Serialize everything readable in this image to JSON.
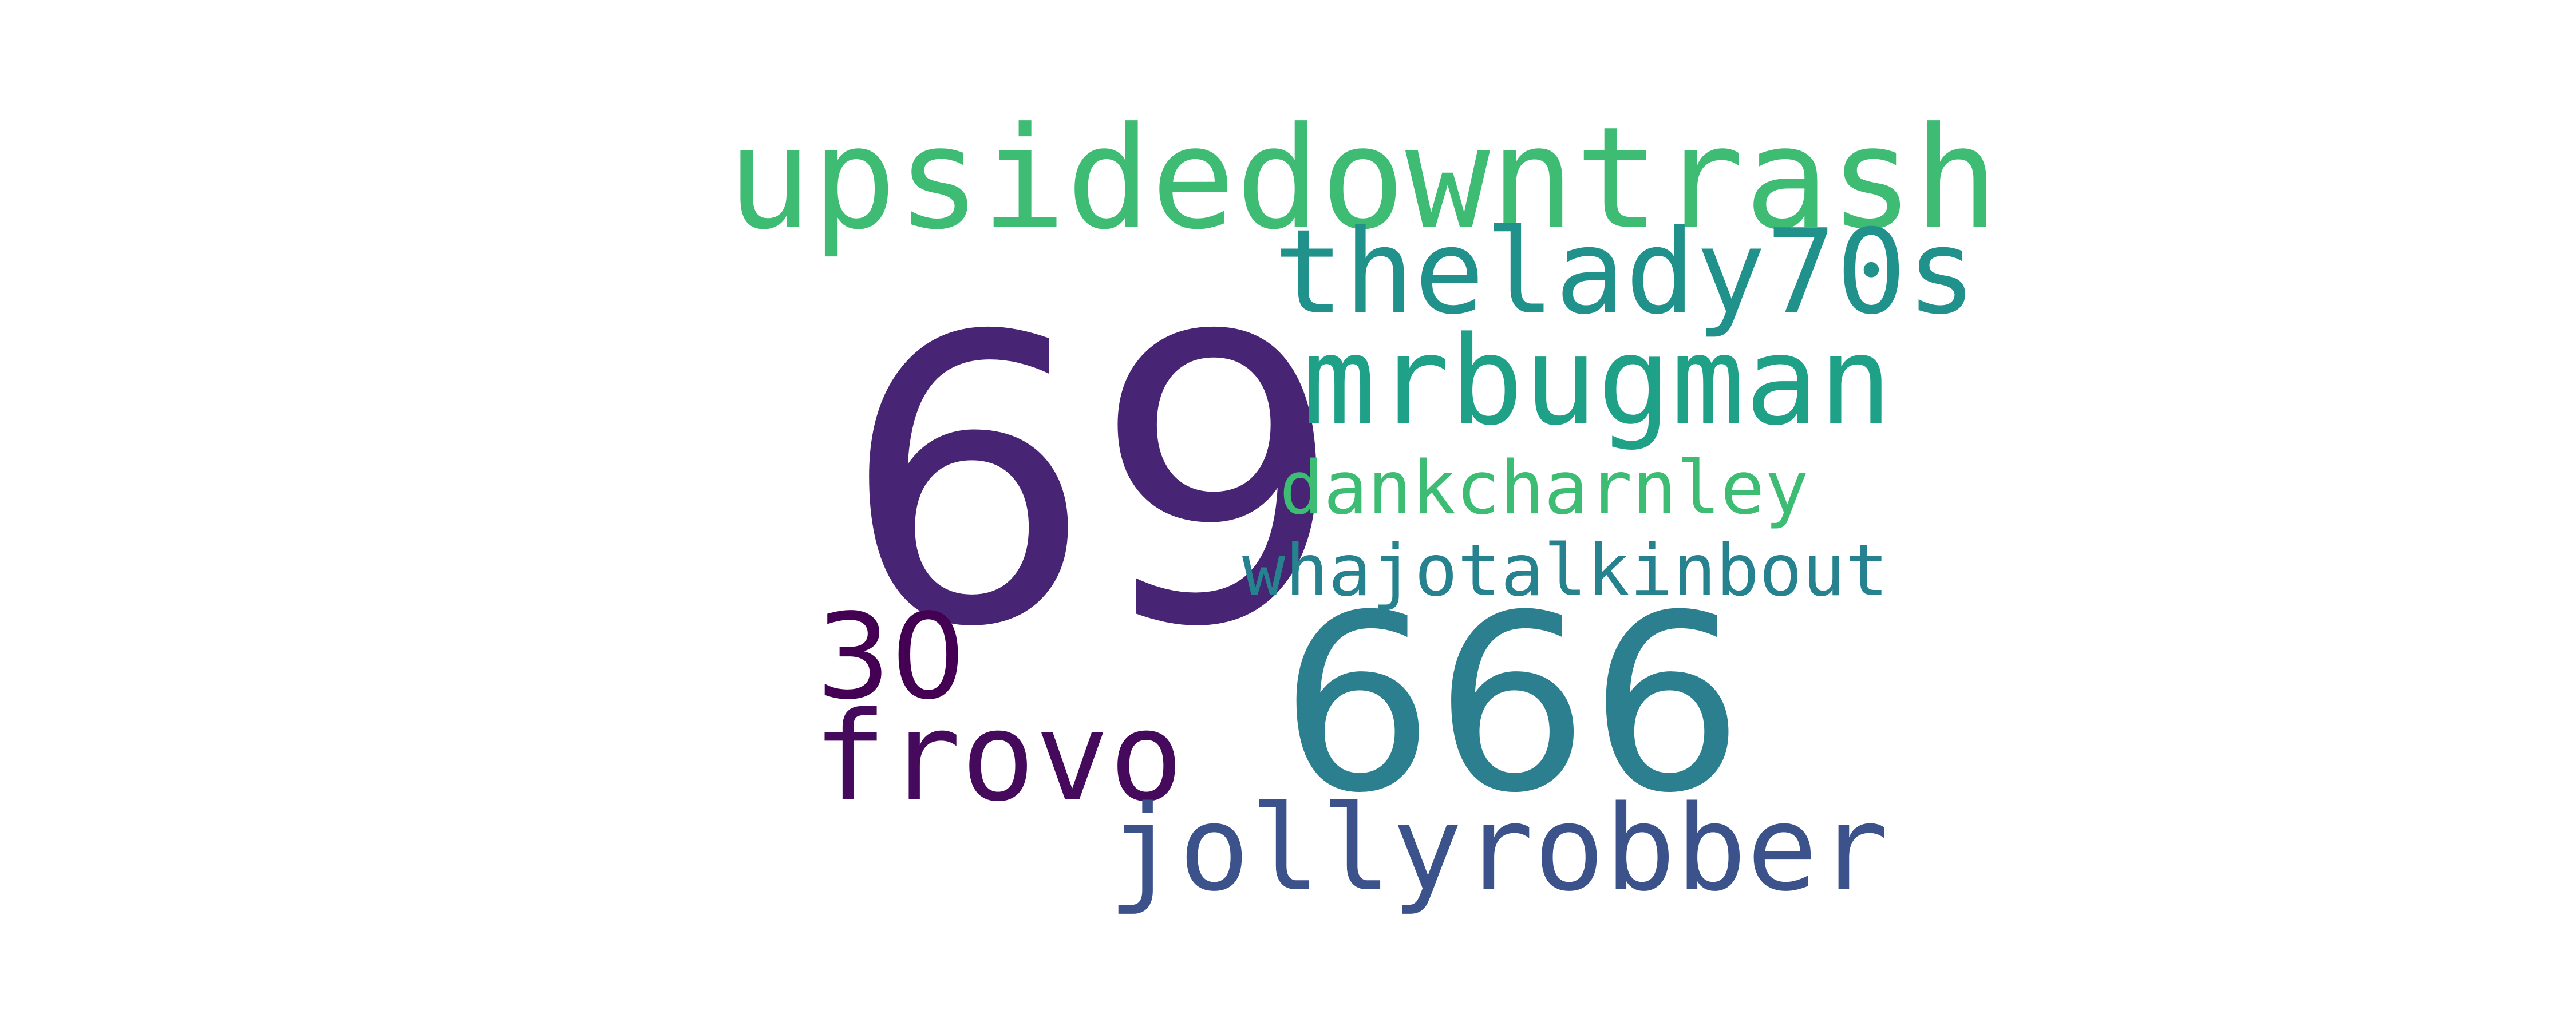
{
  "wordcloud": {
    "background": "#ffffff",
    "words": [
      {
        "text": "69",
        "color": "#482475"
      },
      {
        "text": "upsidedowntrash",
        "color": "#3fbc73"
      },
      {
        "text": "thelady70s",
        "color": "#21918c"
      },
      {
        "text": "mrbugman",
        "color": "#1fa188"
      },
      {
        "text": "dankcharnley",
        "color": "#3dbc74"
      },
      {
        "text": "whajotalkinbout",
        "color": "#26828e"
      },
      {
        "text": "666",
        "color": "#2c7f8e"
      },
      {
        "text": "30",
        "color": "#440154"
      },
      {
        "text": "frovo",
        "color": "#450a5c"
      },
      {
        "text": "jollyrobber",
        "color": "#3b528b"
      }
    ]
  }
}
